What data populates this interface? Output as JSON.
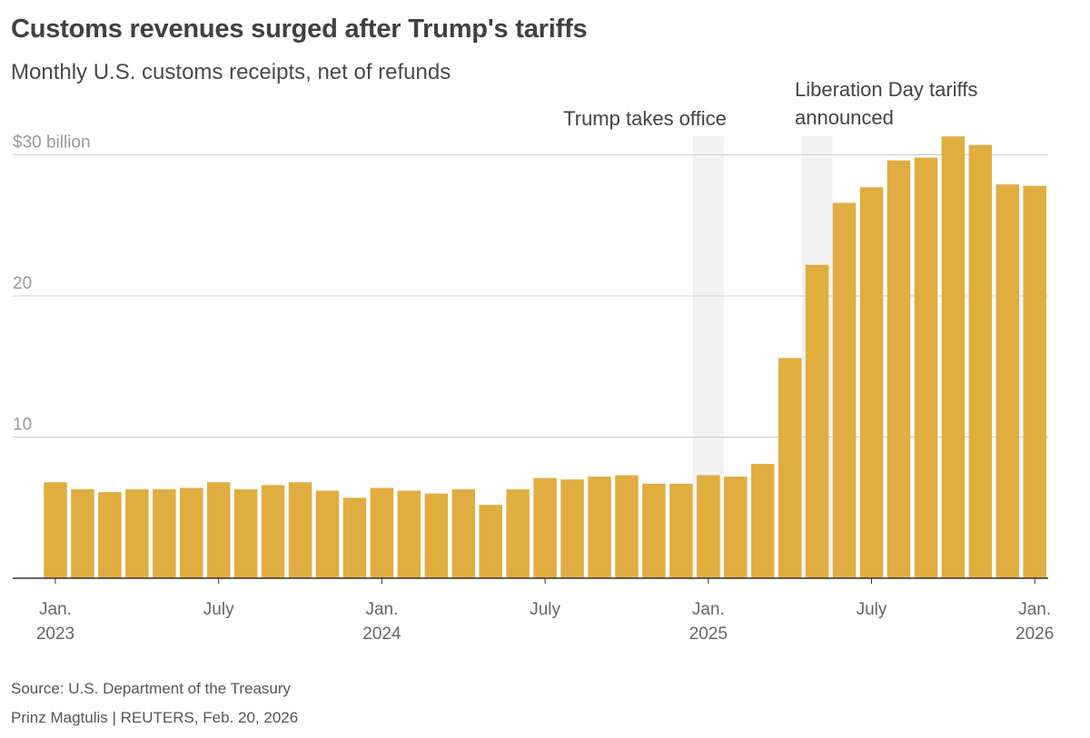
{
  "header": {
    "title": "Customs revenues surged after Trump's tariffs",
    "subtitle": "Monthly U.S. customs receipts, net of refunds"
  },
  "footer": {
    "source": "Source: U.S. Department of the Treasury",
    "credit": "Prinz Magtulis | REUTERS, Feb. 20, 2026"
  },
  "colors": {
    "bar": "#E0AD40",
    "highlight_band": "#F2F2F2",
    "gridline": "#CCCCCC",
    "axis": "#333333",
    "tick_text": "#666666"
  },
  "chart_data": {
    "type": "bar",
    "title": "Customs revenues surged after Trump's tariffs",
    "subtitle": "Monthly U.S. customs receipts, net of refunds",
    "ylabel": "",
    "xlabel": "",
    "unit": "$ billion",
    "ylim": [
      0,
      31
    ],
    "yticks": [
      {
        "value": 10,
        "label": "10"
      },
      {
        "value": 20,
        "label": "20"
      },
      {
        "value": 30,
        "label": "$30 billion"
      }
    ],
    "grid": true,
    "categories": [
      "2023-01",
      "2023-02",
      "2023-03",
      "2023-04",
      "2023-05",
      "2023-06",
      "2023-07",
      "2023-08",
      "2023-09",
      "2023-10",
      "2023-11",
      "2023-12",
      "2024-01",
      "2024-02",
      "2024-03",
      "2024-04",
      "2024-05",
      "2024-06",
      "2024-07",
      "2024-08",
      "2024-09",
      "2024-10",
      "2024-11",
      "2024-12",
      "2025-01",
      "2025-02",
      "2025-03",
      "2025-04",
      "2025-05",
      "2025-06",
      "2025-07",
      "2025-08",
      "2025-09",
      "2025-10",
      "2025-11",
      "2025-12",
      "2026-01"
    ],
    "values": [
      6.8,
      6.3,
      6.1,
      6.3,
      6.3,
      6.4,
      6.8,
      6.3,
      6.6,
      6.8,
      6.2,
      5.7,
      6.4,
      6.2,
      6.0,
      6.3,
      5.2,
      6.3,
      7.1,
      7.0,
      7.2,
      7.3,
      6.7,
      6.7,
      7.3,
      7.2,
      8.1,
      15.6,
      22.2,
      26.6,
      27.7,
      29.6,
      29.8,
      31.3,
      30.7,
      27.9,
      27.8
    ],
    "xticks": [
      {
        "index": 0,
        "line1": "Jan.",
        "line2": "2023"
      },
      {
        "index": 6,
        "line1": "July",
        "line2": ""
      },
      {
        "index": 12,
        "line1": "Jan.",
        "line2": "2024"
      },
      {
        "index": 18,
        "line1": "July",
        "line2": ""
      },
      {
        "index": 24,
        "line1": "Jan.",
        "line2": "2025"
      },
      {
        "index": 30,
        "line1": "July",
        "line2": ""
      },
      {
        "index": 36,
        "line1": "Jan.",
        "line2": "2026"
      }
    ],
    "annotations": [
      {
        "index": 24,
        "lines": [
          "Trump takes office"
        ]
      },
      {
        "index": 28,
        "lines": [
          "Liberation Day tariffs",
          "announced"
        ]
      }
    ]
  }
}
